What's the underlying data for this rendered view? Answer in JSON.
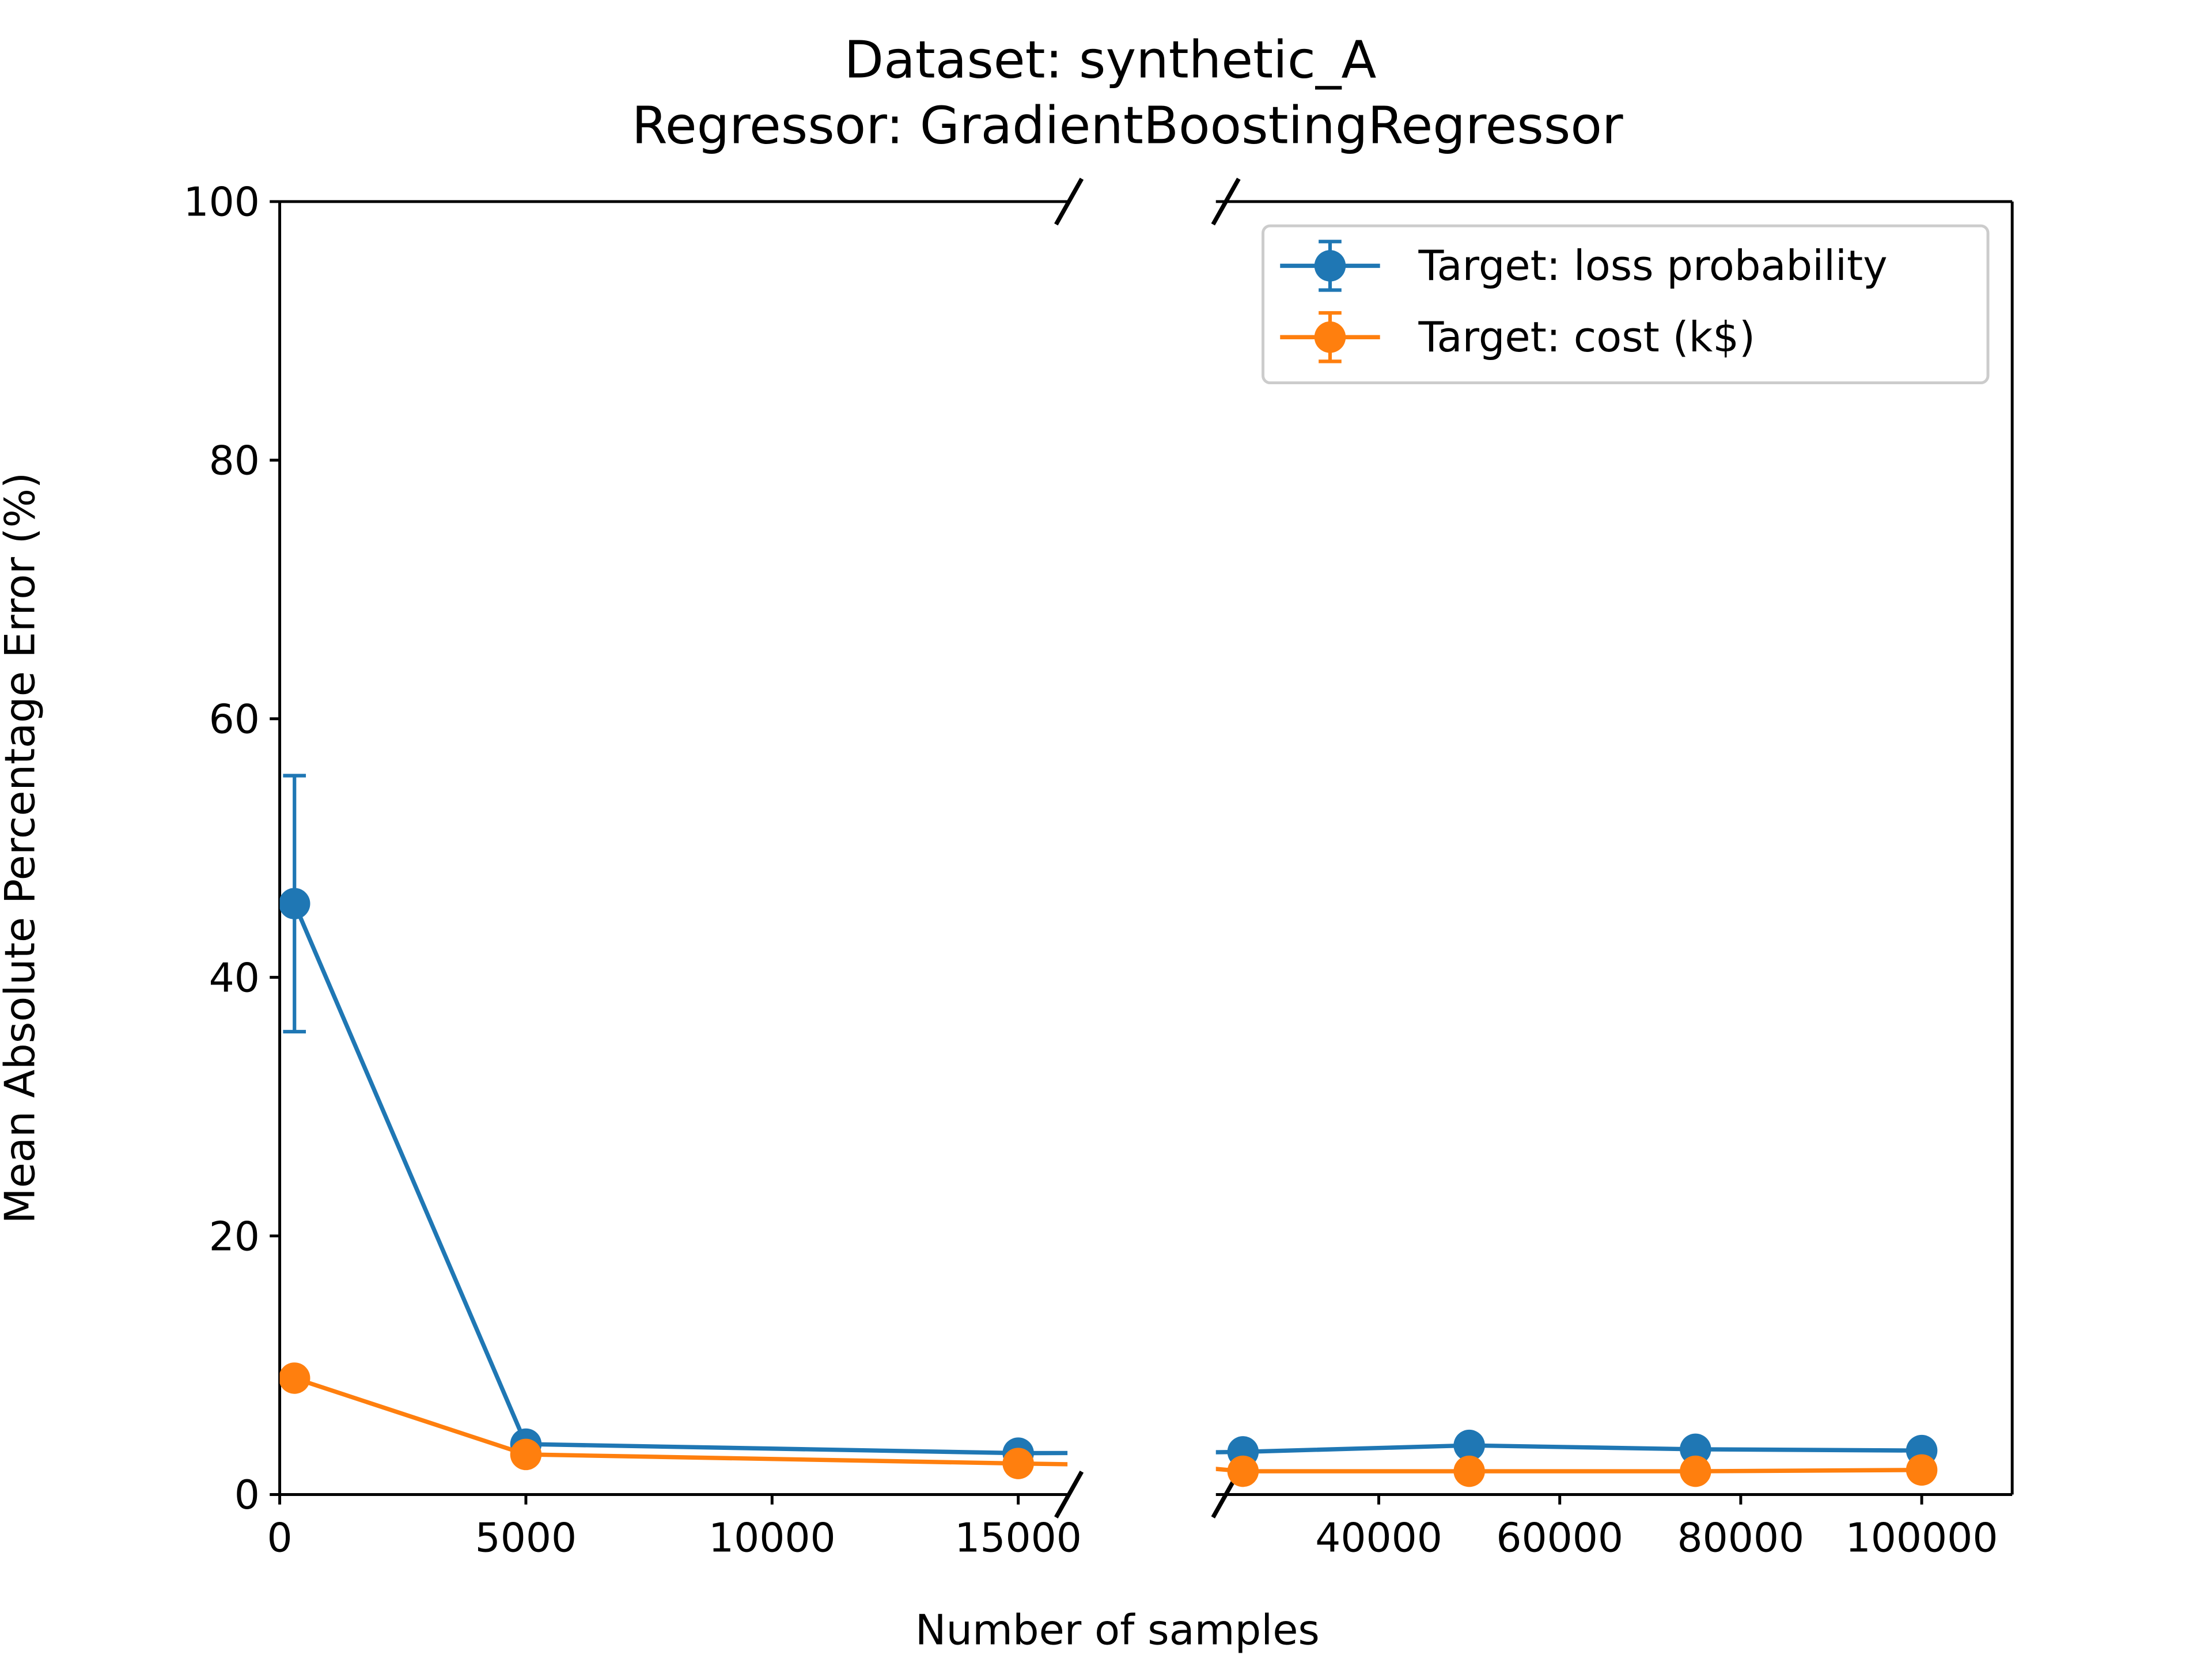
{
  "chart_data": {
    "type": "line",
    "title": "Dataset: synthetic_A",
    "subtitle": "Regressor: GradientBoostingRegressor",
    "x_label": "Number of samples",
    "y_label": "Mean Absolute Percentage Error (%)",
    "x": [
      300,
      5000,
      15000,
      25000,
      50000,
      75000,
      100000
    ],
    "panels": [
      {
        "xlim": [
          0,
          16000
        ],
        "xticks": [
          0,
          5000,
          10000,
          15000
        ]
      },
      {
        "xlim": [
          22000,
          110000
        ],
        "xticks": [
          40000,
          60000,
          80000,
          100000
        ]
      }
    ],
    "ylim": [
      0,
      100
    ],
    "yticks": [
      0,
      20,
      40,
      60,
      80,
      100
    ],
    "grid": false,
    "legend": "upper right",
    "series": [
      {
        "name": "Target: loss probability",
        "color": "#1f77b4",
        "values": [
          45.7,
          3.9,
          3.2,
          3.3,
          3.8,
          3.5,
          3.4
        ],
        "errors": [
          9.9,
          0.3,
          0.2,
          0.2,
          0.2,
          0.2,
          0.2
        ]
      },
      {
        "name": "Target: cost (k$)",
        "color": "#ff7f0e",
        "values": [
          9.0,
          3.1,
          2.4,
          1.8,
          1.8,
          1.8,
          1.9
        ],
        "errors": [
          0.5,
          0.6,
          0.3,
          0.1,
          0.1,
          0.1,
          0.1
        ]
      }
    ]
  }
}
